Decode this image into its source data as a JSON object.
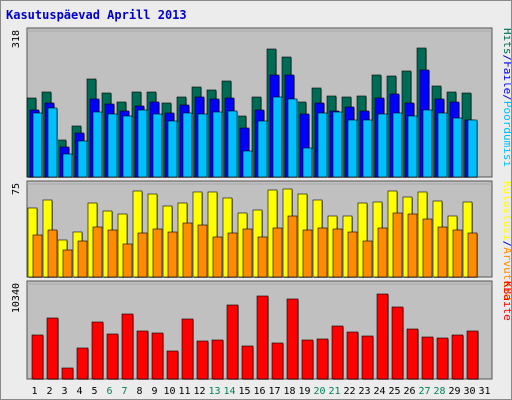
{
  "title": "Kasutuspäevad Aprill 2013",
  "colors": {
    "hits": "#006b54",
    "files": "#0000ff",
    "pages": "#00bfff",
    "visits": "#ffff00",
    "sites": "#ff8c00",
    "kbytes": "#ff0000",
    "plot_bg": "#c0c0c0",
    "weekend_label": "#00805c",
    "weekday_label": "#000000"
  },
  "chart_data": [
    {
      "type": "bar",
      "title": "Kasutuspäevad Aprill 2013",
      "categories": [
        "1",
        "2",
        "3",
        "4",
        "5",
        "6",
        "7",
        "8",
        "9",
        "10",
        "11",
        "12",
        "13",
        "14",
        "15",
        "16",
        "17",
        "18",
        "19",
        "20",
        "21",
        "22",
        "23",
        "24",
        "25",
        "26",
        "27",
        "28",
        "29",
        "30",
        "31"
      ],
      "weekend_categories": [
        "6",
        "7",
        "13",
        "14",
        "20",
        "21",
        "27",
        "28"
      ],
      "ymax_label": "318",
      "ylim": [
        0,
        318
      ],
      "legend": [
        "Hits",
        "/",
        "Faile",
        "/",
        "Pöördumisi"
      ],
      "series": [
        {
          "name": "Hits",
          "values": [
            174,
            187,
            82,
            112,
            214,
            185,
            165,
            187,
            186,
            162,
            176,
            197,
            190,
            210,
            133,
            176,
            280,
            264,
            164,
            196,
            178,
            176,
            178,
            224,
            222,
            232,
            284,
            200,
            186,
            184,
            0
          ]
        },
        {
          "name": "Faile",
          "values": [
            146,
            162,
            66,
            96,
            170,
            161,
            144,
            156,
            164,
            140,
            157,
            175,
            170,
            174,
            108,
            146,
            224,
            224,
            139,
            162,
            145,
            153,
            144,
            173,
            182,
            162,
            235,
            170,
            164,
            125,
            0
          ]
        },
        {
          "name": "Pöördumisi",
          "values": [
            140,
            152,
            50,
            79,
            142,
            138,
            134,
            146,
            138,
            123,
            140,
            138,
            142,
            144,
            57,
            122,
            175,
            172,
            63,
            140,
            143,
            124,
            126,
            138,
            140,
            133,
            148,
            140,
            130,
            126,
            0
          ]
        }
      ]
    },
    {
      "type": "bar",
      "categories": [
        "1",
        "2",
        "3",
        "4",
        "5",
        "6",
        "7",
        "8",
        "9",
        "10",
        "11",
        "12",
        "13",
        "14",
        "15",
        "16",
        "17",
        "18",
        "19",
        "20",
        "21",
        "22",
        "23",
        "24",
        "25",
        "26",
        "27",
        "28",
        "29",
        "30",
        "31"
      ],
      "ymax_label": "75",
      "ylim": [
        0,
        75
      ],
      "legend": [
        "Külastusi",
        "/",
        "Arvuteid"
      ],
      "series": [
        {
          "name": "Külastusi",
          "values": [
            56,
            63,
            30,
            37,
            60,
            54,
            51,
            70,
            68,
            58,
            60,
            69,
            69,
            64,
            52,
            55,
            71,
            72,
            68,
            63,
            50,
            50,
            60,
            61,
            70,
            65,
            69,
            62,
            50,
            61,
            0
          ]
        },
        {
          "name": "Arvuteid",
          "values": [
            34,
            38,
            22,
            29,
            41,
            38,
            27,
            36,
            39,
            37,
            44,
            42,
            33,
            36,
            39,
            33,
            40,
            50,
            38,
            40,
            39,
            37,
            29,
            40,
            52,
            51,
            47,
            41,
            38,
            36,
            0
          ]
        }
      ]
    },
    {
      "type": "bar",
      "categories": [
        "1",
        "2",
        "3",
        "4",
        "5",
        "6",
        "7",
        "8",
        "9",
        "10",
        "11",
        "12",
        "13",
        "14",
        "15",
        "16",
        "17",
        "18",
        "19",
        "20",
        "21",
        "22",
        "23",
        "24",
        "25",
        "26",
        "27",
        "28",
        "29",
        "30",
        "31"
      ],
      "ymax_label": "10340",
      "ylim": [
        0,
        10340
      ],
      "legend": [
        "KBaite"
      ],
      "series": [
        {
          "name": "KBaite",
          "values": [
            4894,
            6690,
            1236,
            3394,
            6324,
            4956,
            7102,
            5269,
            5084,
            3026,
            6596,
            4212,
            4264,
            8110,
            3641,
            9076,
            3975,
            8762,
            4284,
            4346,
            5881,
            5179,
            4681,
            9356,
            7873,
            5486,
            4638,
            4502,
            4836,
            5262,
            0
          ]
        }
      ]
    }
  ]
}
